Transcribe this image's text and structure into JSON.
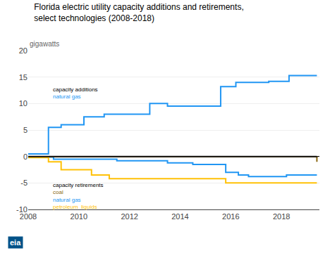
{
  "chart_data": {
    "type": "line",
    "title": "Florida electric utility capacity additions and retirements,\nselect technologies (2008-2018)",
    "ylabel": "gigawatts",
    "xlim": [
      2008,
      2019.5
    ],
    "ylim": [
      -10,
      20
    ],
    "xticks": [
      2008,
      2010,
      2012,
      2014,
      2016,
      2018
    ],
    "yticks": [
      -10,
      -5,
      0,
      5,
      10,
      15,
      20
    ],
    "grid": "y",
    "series": [
      {
        "color": "#2196F3",
        "line_style": "step",
        "x": [
          2008,
          2008.8,
          2009.3,
          2010.2,
          2011.0,
          2012.8,
          2013.5,
          2015.6,
          2016.2,
          2017.5,
          2018.3,
          2019.4
        ],
        "values": [
          0.5,
          5.5,
          6.0,
          7.5,
          8.0,
          10.0,
          9.5,
          13.2,
          14.0,
          14.2,
          15.3,
          15.3
        ]
      },
      {
        "color": "#2196F3",
        "line_style": "step",
        "x": [
          2008,
          2009.0,
          2011.5,
          2013.5,
          2014.5,
          2015.8,
          2016.3,
          2016.7,
          2018.2,
          2019.4
        ],
        "values": [
          -0.1,
          -0.5,
          -0.8,
          -1.2,
          -1.5,
          -3.0,
          -3.5,
          -3.8,
          -3.5,
          -3.5
        ]
      },
      {
        "color": "#8B6914",
        "line_style": "step",
        "x": [
          2008,
          2017.8,
          2019.4
        ],
        "values": [
          -0.05,
          -0.05,
          -1.0
        ]
      },
      {
        "color": "#FFC107",
        "line_style": "step",
        "x": [
          2008,
          2008.8,
          2009.3,
          2010.5,
          2011.2,
          2015.8,
          2019.4
        ],
        "values": [
          -0.2,
          -1.0,
          -2.5,
          -3.5,
          -4.2,
          -5.0,
          -5.0
        ]
      },
      {
        "color": "#111111",
        "line_style": "step",
        "x": [
          2008,
          2017.5,
          2019.4
        ],
        "values": [
          0.0,
          0.0,
          0.05
        ]
      }
    ],
    "annotations": [
      {
        "text": "capacity additions",
        "color": "black"
      },
      {
        "text": "natural gas",
        "color": "#2196F3"
      },
      {
        "text": "capacity retirements",
        "color": "black"
      },
      {
        "text": "coal",
        "color": "#8B6914"
      },
      {
        "text": "natural gas",
        "color": "#2196F3"
      },
      {
        "text": "petroleum  liquids",
        "color": "#FFC107"
      }
    ],
    "logo": "eia"
  }
}
